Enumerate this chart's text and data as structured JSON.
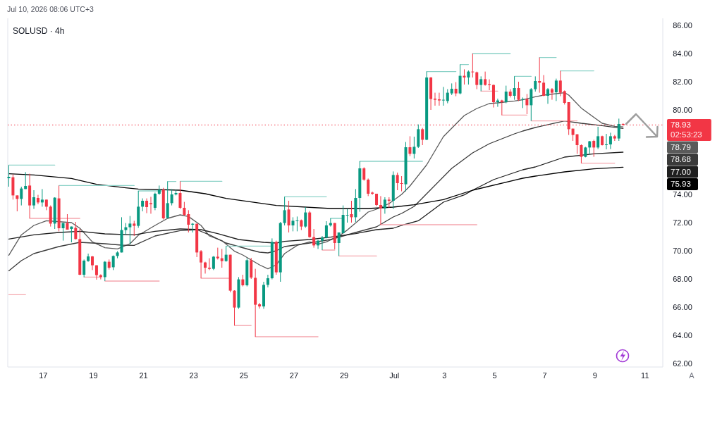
{
  "chart_data": {
    "type": "candlestick",
    "title": "SOLUSD · 4h",
    "annotations": [
      "Jul 10, 2026 08:06 UTC+3",
      "02:53:23",
      "78.79",
      "78.68",
      "77.00",
      "75.93",
      "A"
    ],
    "x": [
      "2026-06-15T15:00",
      "2026-06-15T19:00",
      "2026-06-15T23:00",
      "2026-06-16T03:00",
      "2026-06-16T07:00",
      "2026-06-16T11:00",
      "2026-06-16T15:00",
      "2026-06-16T19:00",
      "2026-06-16T23:00",
      "2026-06-17T03:00",
      "2026-06-17T07:00",
      "2026-06-17T11:00",
      "2026-06-17T15:00",
      "2026-06-17T19:00",
      "2026-06-17T23:00",
      "2026-06-18T03:00",
      "2026-06-18T07:00",
      "2026-06-18T11:00",
      "2026-06-18T15:00",
      "2026-06-18T19:00",
      "2026-06-18T23:00",
      "2026-06-19T03:00",
      "2026-06-19T07:00",
      "2026-06-19T11:00",
      "2026-06-19T15:00",
      "2026-06-19T19:00",
      "2026-06-19T23:00",
      "2026-06-20T03:00",
      "2026-06-20T07:00",
      "2026-06-20T11:00",
      "2026-06-20T15:00",
      "2026-06-20T19:00",
      "2026-06-20T23:00",
      "2026-06-21T03:00",
      "2026-06-21T07:00",
      "2026-06-21T11:00",
      "2026-06-21T15:00",
      "2026-06-21T19:00",
      "2026-06-21T23:00",
      "2026-06-22T03:00",
      "2026-06-22T07:00",
      "2026-06-22T11:00",
      "2026-06-22T15:00",
      "2026-06-22T19:00",
      "2026-06-22T23:00",
      "2026-06-23T03:00",
      "2026-06-23T07:00",
      "2026-06-23T11:00",
      "2026-06-23T15:00",
      "2026-06-23T19:00",
      "2026-06-23T23:00",
      "2026-06-24T03:00",
      "2026-06-24T07:00",
      "2026-06-24T11:00",
      "2026-06-24T15:00",
      "2026-06-24T19:00",
      "2026-06-24T23:00",
      "2026-06-25T03:00",
      "2026-06-25T07:00",
      "2026-06-25T11:00",
      "2026-06-25T15:00",
      "2026-06-25T19:00",
      "2026-06-25T23:00",
      "2026-06-26T03:00",
      "2026-06-26T07:00",
      "2026-06-26T11:00",
      "2026-06-26T15:00",
      "2026-06-26T19:00",
      "2026-06-26T23:00",
      "2026-06-27T03:00",
      "2026-06-27T07:00",
      "2026-06-27T11:00",
      "2026-06-27T15:00",
      "2026-06-27T19:00",
      "2026-06-27T23:00",
      "2026-06-28T03:00",
      "2026-06-28T07:00",
      "2026-06-28T11:00",
      "2026-06-28T15:00",
      "2026-06-28T19:00",
      "2026-06-28T23:00",
      "2026-06-29T03:00",
      "2026-06-29T07:00",
      "2026-06-29T11:00",
      "2026-06-29T15:00",
      "2026-06-29T19:00",
      "2026-06-29T23:00",
      "2026-06-30T03:00",
      "2026-06-30T07:00",
      "2026-06-30T11:00",
      "2026-06-30T15:00",
      "2026-06-30T19:00",
      "2026-06-30T23:00",
      "2026-07-01T03:00",
      "2026-07-01T07:00",
      "2026-07-01T11:00",
      "2026-07-01T15:00",
      "2026-07-01T19:00",
      "2026-07-01T23:00",
      "2026-07-02T03:00",
      "2026-07-02T07:00",
      "2026-07-02T11:00",
      "2026-07-02T15:00",
      "2026-07-02T19:00",
      "2026-07-02T23:00",
      "2026-07-03T03:00",
      "2026-07-03T07:00",
      "2026-07-03T11:00",
      "2026-07-03T15:00",
      "2026-07-03T19:00",
      "2026-07-03T23:00",
      "2026-07-04T03:00",
      "2026-07-04T07:00",
      "2026-07-04T11:00",
      "2026-07-04T15:00",
      "2026-07-04T19:00",
      "2026-07-04T23:00",
      "2026-07-05T03:00",
      "2026-07-05T07:00",
      "2026-07-05T11:00",
      "2026-07-05T15:00",
      "2026-07-05T19:00",
      "2026-07-05T23:00",
      "2026-07-06T03:00",
      "2026-07-06T07:00",
      "2026-07-06T11:00",
      "2026-07-06T15:00",
      "2026-07-06T19:00",
      "2026-07-06T23:00",
      "2026-07-07T03:00",
      "2026-07-07T07:00",
      "2026-07-07T11:00",
      "2026-07-07T15:00",
      "2026-07-07T19:00",
      "2026-07-07T23:00",
      "2026-07-08T03:00",
      "2026-07-08T07:00",
      "2026-07-08T11:00",
      "2026-07-08T15:00",
      "2026-07-08T19:00",
      "2026-07-08T23:00",
      "2026-07-09T03:00",
      "2026-07-09T07:00",
      "2026-07-09T11:00",
      "2026-07-09T15:00",
      "2026-07-09T19:00",
      "2026-07-09T23:00",
      "2026-07-10T03:00"
    ],
    "ohlc": [
      [
        75.15,
        76.08,
        74.55,
        75.25
      ],
      [
        75.22,
        75.42,
        73.63,
        73.93
      ],
      [
        73.93,
        73.93,
        72.8,
        73.68
      ],
      [
        73.68,
        74.55,
        73.22,
        74.42
      ],
      [
        74.38,
        75.58,
        74.38,
        74.6
      ],
      [
        74.63,
        75.47,
        72.3,
        73.22
      ],
      [
        73.22,
        74.3,
        72.97,
        73.8
      ],
      [
        73.75,
        73.97,
        73.3,
        73.43
      ],
      [
        73.43,
        74.38,
        73.13,
        73.63
      ],
      [
        73.63,
        73.63,
        72.88,
        73.13
      ],
      [
        73.13,
        73.22,
        71.72,
        71.93
      ],
      [
        71.93,
        73.8,
        71.55,
        73.77
      ],
      [
        73.72,
        74.63,
        71.38,
        71.6
      ],
      [
        71.6,
        71.97,
        70.72,
        71.97
      ],
      [
        71.97,
        72.6,
        71.5,
        71.5
      ],
      [
        71.55,
        71.72,
        70.6,
        71.72
      ],
      [
        71.63,
        72.05,
        70.8,
        70.83
      ],
      [
        70.83,
        71.55,
        68.27,
        68.3
      ],
      [
        68.3,
        69.38,
        68.13,
        69.3
      ],
      [
        69.27,
        69.8,
        69.22,
        69.6
      ],
      [
        69.6,
        69.63,
        68.63,
        68.97
      ],
      [
        68.97,
        68.97,
        67.95,
        68.27
      ],
      [
        68.27,
        68.33,
        67.97,
        68.13
      ],
      [
        68.13,
        69.27,
        67.85,
        69.22
      ],
      [
        69.22,
        69.38,
        68.67,
        68.8
      ],
      [
        68.83,
        69.67,
        68.63,
        69.63
      ],
      [
        69.63,
        69.97,
        69.47,
        69.88
      ],
      [
        69.88,
        72.38,
        69.88,
        71.47
      ],
      [
        71.47,
        71.97,
        71.13,
        71.67
      ],
      [
        71.67,
        72.47,
        70.47,
        71.93
      ],
      [
        71.93,
        72.13,
        71.05,
        71.77
      ],
      [
        71.77,
        74.25,
        71.63,
        73.13
      ],
      [
        73.13,
        73.72,
        72.8,
        73.55
      ],
      [
        73.55,
        73.72,
        72.67,
        73.1
      ],
      [
        73.38,
        73.83,
        72.63,
        73.3
      ],
      [
        73.05,
        74.13,
        72.88,
        74.05
      ],
      [
        74.05,
        74.63,
        73.97,
        74.33
      ],
      [
        74.33,
        74.47,
        72.22,
        72.3
      ],
      [
        72.33,
        74.92,
        72.3,
        73.38
      ],
      [
        73.38,
        74.38,
        73.22,
        74.0
      ],
      [
        74.0,
        74.33,
        73.93,
        74.1
      ],
      [
        74.1,
        74.93,
        72.97,
        73.05
      ],
      [
        73.05,
        73.47,
        72.47,
        72.55
      ],
      [
        72.6,
        72.88,
        71.3,
        71.85
      ],
      [
        71.85,
        71.97,
        71.3,
        71.92
      ],
      [
        71.92,
        71.92,
        69.55,
        69.88
      ],
      [
        69.97,
        70.05,
        68.05,
        69.17
      ],
      [
        69.17,
        69.22,
        68.38,
        68.8
      ],
      [
        68.8,
        69.47,
        68.63,
        68.72
      ],
      [
        68.72,
        69.63,
        68.63,
        69.58
      ],
      [
        69.58,
        70.22,
        69.38,
        69.47
      ],
      [
        69.47,
        70.13,
        68.8,
        69.27
      ],
      [
        69.27,
        70.33,
        69.22,
        69.72
      ],
      [
        69.72,
        69.72,
        67.05,
        67.17
      ],
      [
        67.17,
        67.2,
        64.7,
        65.97
      ],
      [
        65.97,
        68.13,
        65.88,
        67.97
      ],
      [
        67.97,
        68.3,
        67.47,
        67.55
      ],
      [
        67.55,
        69.47,
        67.47,
        69.33
      ],
      [
        69.33,
        69.5,
        68.0,
        68.1
      ],
      [
        68.08,
        68.72,
        63.9,
        66.17
      ],
      [
        66.2,
        66.3,
        65.9,
        66.05
      ],
      [
        66.05,
        67.8,
        65.88,
        67.58
      ],
      [
        67.58,
        68.3,
        67.4,
        68.05
      ],
      [
        68.05,
        70.88,
        67.97,
        70.63
      ],
      [
        70.63,
        70.72,
        68.3,
        68.47
      ],
      [
        68.47,
        72.05,
        67.8,
        71.97
      ],
      [
        71.97,
        73.83,
        71.8,
        72.88
      ],
      [
        72.93,
        73.55,
        71.3,
        71.8
      ],
      [
        71.8,
        72.38,
        71.38,
        72.13
      ],
      [
        72.1,
        72.43,
        71.38,
        72.15
      ],
      [
        72.17,
        72.22,
        71.47,
        71.72
      ],
      [
        71.72,
        73.1,
        71.63,
        72.72
      ],
      [
        72.72,
        72.83,
        70.93,
        70.97
      ],
      [
        70.97,
        71.55,
        70.22,
        70.38
      ],
      [
        70.38,
        70.77,
        70.13,
        70.72
      ],
      [
        70.72,
        71.05,
        70.05,
        70.93
      ],
      [
        70.93,
        72.1,
        70.88,
        71.8
      ],
      [
        71.8,
        72.3,
        71.72,
        71.97
      ],
      [
        71.97,
        71.97,
        70.1,
        70.55
      ],
      [
        70.55,
        71.3,
        69.63,
        71.3
      ],
      [
        71.25,
        73.22,
        71.22,
        72.55
      ],
      [
        72.5,
        72.97,
        72.0,
        72.55
      ],
      [
        72.6,
        73.55,
        72.0,
        72.38
      ],
      [
        72.38,
        74.38,
        72.05,
        73.75
      ],
      [
        73.75,
        76.35,
        72.77,
        75.85
      ],
      [
        75.85,
        75.93,
        74.97,
        75.05
      ],
      [
        75.05,
        75.13,
        73.88,
        74.05
      ],
      [
        74.13,
        74.2,
        73.97,
        74.05
      ],
      [
        74.05,
        74.05,
        73.17,
        73.25
      ],
      [
        73.25,
        73.88,
        71.85,
        73.0
      ],
      [
        73.0,
        73.8,
        72.63,
        73.63
      ],
      [
        73.63,
        73.8,
        73.05,
        73.55
      ],
      [
        73.55,
        75.63,
        72.97,
        75.38
      ],
      [
        75.38,
        75.55,
        74.3,
        74.8
      ],
      [
        74.8,
        75.3,
        74.22,
        74.75
      ],
      [
        74.72,
        77.72,
        74.22,
        77.35
      ],
      [
        77.35,
        78.13,
        76.72,
        76.88
      ],
      [
        76.88,
        78.1,
        76.55,
        77.38
      ],
      [
        77.38,
        78.97,
        77.3,
        78.63
      ],
      [
        78.63,
        78.72,
        77.5,
        77.88
      ],
      [
        77.88,
        82.72,
        77.85,
        82.3
      ],
      [
        82.3,
        82.33,
        80.0,
        80.77
      ],
      [
        80.8,
        81.22,
        80.3,
        80.72
      ],
      [
        80.75,
        81.22,
        80.3,
        80.67
      ],
      [
        80.67,
        81.63,
        80.3,
        80.72
      ],
      [
        80.63,
        81.47,
        80.47,
        81.22
      ],
      [
        81.17,
        81.88,
        81.05,
        81.5
      ],
      [
        81.5,
        81.97,
        80.97,
        81.17
      ],
      [
        81.17,
        83.22,
        81.1,
        82.42
      ],
      [
        82.42,
        82.88,
        81.8,
        82.3
      ],
      [
        82.3,
        82.8,
        81.8,
        82.72
      ],
      [
        82.72,
        84.0,
        82.3,
        82.67
      ],
      [
        82.67,
        82.72,
        81.47,
        81.77
      ],
      [
        81.77,
        82.38,
        81.33,
        82.18
      ],
      [
        82.18,
        82.72,
        81.72,
        81.77
      ],
      [
        81.83,
        82.17,
        81.4,
        81.77
      ],
      [
        81.77,
        81.8,
        80.17,
        80.55
      ],
      [
        80.55,
        80.8,
        80.22,
        80.67
      ],
      [
        80.67,
        80.72,
        79.63,
        80.55
      ],
      [
        80.55,
        81.72,
        80.47,
        81.3
      ],
      [
        81.3,
        81.47,
        80.88,
        81.0
      ],
      [
        81.0,
        82.38,
        80.72,
        81.55
      ],
      [
        81.55,
        82.0,
        80.63,
        80.72
      ],
      [
        80.72,
        80.88,
        80.13,
        80.77
      ],
      [
        80.77,
        81.13,
        79.7,
        80.33
      ],
      [
        80.33,
        81.55,
        79.22,
        81.47
      ],
      [
        81.47,
        82.38,
        81.3,
        82.05
      ],
      [
        82.05,
        83.72,
        81.22,
        81.93
      ],
      [
        81.93,
        82.47,
        80.97,
        81.0
      ],
      [
        81.0,
        81.55,
        80.43,
        81.47
      ],
      [
        81.47,
        81.55,
        80.72,
        81.22
      ],
      [
        81.25,
        82.22,
        80.63,
        82.08
      ],
      [
        82.08,
        82.77,
        80.97,
        81.22
      ],
      [
        81.33,
        81.38,
        80.38,
        80.5
      ],
      [
        80.55,
        80.55,
        78.22,
        78.63
      ],
      [
        78.67,
        78.67,
        77.8,
        78.22
      ],
      [
        78.27,
        78.27,
        76.88,
        77.5
      ],
      [
        77.5,
        77.55,
        76.22,
        76.67
      ],
      [
        76.67,
        77.38,
        76.63,
        77.33
      ],
      [
        77.33,
        77.8,
        76.88,
        77.77
      ],
      [
        77.8,
        77.88,
        76.67,
        77.33
      ],
      [
        77.33,
        78.8,
        77.22,
        78.13
      ],
      [
        78.13,
        78.17,
        77.47,
        77.5
      ],
      [
        77.5,
        78.3,
        77.2,
        77.55
      ],
      [
        77.55,
        78.38,
        77.22,
        78.13
      ],
      [
        78.13,
        78.22,
        77.8,
        77.97
      ],
      [
        77.97,
        79.38,
        77.8,
        79.0
      ],
      [
        79.0,
        79.05,
        78.9,
        78.93
      ]
    ],
    "colors": [
      "#089981",
      "#f23645",
      "#f23645",
      "#089981",
      "#089981",
      "#f23645",
      "#089981",
      "#f23645",
      "#089981",
      "#f23645",
      "#f23645",
      "#089981",
      "#f23645",
      "#089981",
      "#f23645",
      "#089981",
      "#f23645",
      "#f23645",
      "#089981",
      "#089981",
      "#f23645",
      "#f23645",
      "#f23645",
      "#089981",
      "#f23645",
      "#089981",
      "#089981",
      "#089981",
      "#089981",
      "#089981",
      "#f23645",
      "#089981",
      "#089981",
      "#f23645",
      "#f23645",
      "#089981",
      "#089981",
      "#f23645",
      "#089981",
      "#089981",
      "#089981",
      "#f23645",
      "#f23645",
      "#f23645",
      "#089981",
      "#f23645",
      "#f23645",
      "#f23645",
      "#f23645",
      "#089981",
      "#f23645",
      "#f23645",
      "#089981",
      "#f23645",
      "#f23645",
      "#089981",
      "#f23645",
      "#089981",
      "#f23645",
      "#f23645",
      "#f23645",
      "#089981",
      "#089981",
      "#089981",
      "#f23645",
      "#089981",
      "#089981",
      "#f23645",
      "#089981",
      "#089981",
      "#f23645",
      "#089981",
      "#f23645",
      "#f23645",
      "#089981",
      "#089981",
      "#089981",
      "#089981",
      "#f23645",
      "#089981",
      "#089981",
      "#089981",
      "#f23645",
      "#089981",
      "#089981",
      "#f23645",
      "#f23645",
      "#f23645",
      "#f23645",
      "#f23645",
      "#089981",
      "#f23645",
      "#089981",
      "#f23645",
      "#f23645",
      "#089981",
      "#f23645",
      "#089981",
      "#089981",
      "#f23645",
      "#089981",
      "#f23645",
      "#f23645",
      "#f23645",
      "#089981",
      "#089981",
      "#089981",
      "#f23645",
      "#089981",
      "#f23645",
      "#089981",
      "#f23645",
      "#f23645",
      "#089981",
      "#f23645",
      "#f23645",
      "#f23645",
      "#089981",
      "#f23645",
      "#089981",
      "#f23645",
      "#089981",
      "#f23645",
      "#089981",
      "#f23645",
      "#089981",
      "#089981",
      "#f23645",
      "#f23645",
      "#089981",
      "#f23645",
      "#089981",
      "#f23645",
      "#f23645",
      "#f23645",
      "#f23645",
      "#f23645",
      "#f23645",
      "#089981",
      "#089981",
      "#f23645",
      "#089981",
      "#f23645",
      "#089981",
      "#089981",
      "#f23645",
      "#089981",
      "#f23645"
    ],
    "series": [
      {
        "type": "line",
        "color": "#5a5a5a",
        "x": [
          "2026-06-15T15:00",
          "2026-06-16T03:00",
          "2026-06-16T15:00",
          "2026-06-17T03:00",
          "2026-06-18T03:00",
          "2026-06-18T11:00",
          "2026-06-18T23:00",
          "2026-06-19T11:00",
          "2026-06-19T23:00",
          "2026-06-20T11:00",
          "2026-06-20T19:00",
          "2026-06-21T11:00",
          "2026-06-21T23:00",
          "2026-06-22T11:00",
          "2026-06-22T19:00",
          "2026-06-23T07:00",
          "2026-06-23T15:00",
          "2026-06-24T03:00",
          "2026-06-24T15:00",
          "2026-06-24T23:00",
          "2026-06-25T15:00",
          "2026-06-25T23:00",
          "2026-06-26T07:00",
          "2026-06-26T15:00",
          "2026-06-27T03:00",
          "2026-06-27T15:00",
          "2026-06-27T23:00",
          "2026-06-28T07:00",
          "2026-06-28T19:00",
          "2026-06-29T03:00",
          "2026-06-29T11:00",
          "2026-06-29T23:00",
          "2026-06-30T07:00",
          "2026-06-30T19:00",
          "2026-07-01T07:00",
          "2026-07-01T15:00",
          "2026-07-02T07:00",
          "2026-07-02T23:00",
          "2026-07-03T11:00",
          "2026-07-03T19:00",
          "2026-07-04T07:00",
          "2026-07-04T19:00",
          "2026-07-05T03:00",
          "2026-07-05T19:00",
          "2026-07-06T03:00",
          "2026-07-06T15:00",
          "2026-07-06T23:00",
          "2026-07-07T19:00",
          "2026-07-07T23:00",
          "2026-07-08T11:00",
          "2026-07-08T23:00",
          "2026-07-09T07:00",
          "2026-07-09T19:00",
          "2026-07-10T03:00"
        ],
        "values": [
          69.68,
          71.13,
          71.8,
          72.13,
          72.0,
          71.6,
          70.63,
          70.22,
          70.13,
          70.5,
          71.1,
          71.8,
          72.3,
          72.55,
          72.43,
          71.8,
          71.05,
          70.72,
          69.97,
          69.7,
          69.0,
          68.72,
          69.0,
          69.8,
          70.38,
          70.63,
          70.47,
          70.63,
          71.05,
          71.47,
          71.97,
          72.75,
          72.95,
          73.35,
          74.0,
          74.6,
          76.1,
          78.1,
          79.0,
          79.6,
          80.1,
          80.45,
          80.5,
          80.63,
          80.72,
          80.93,
          81.05,
          81.22,
          81.05,
          80.13,
          79.47,
          79.05,
          78.83,
          78.79
        ]
      },
      {
        "type": "line",
        "color": "#3a3a3a",
        "x": [
          "2026-06-15T15:00",
          "2026-06-16T03:00",
          "2026-06-16T15:00",
          "2026-06-17T15:00",
          "2026-06-18T11:00",
          "2026-06-19T11:00",
          "2026-06-20T03:00",
          "2026-06-20T15:00",
          "2026-06-21T11:00",
          "2026-06-22T11:00",
          "2026-06-23T03:00",
          "2026-06-23T15:00",
          "2026-06-24T07:00",
          "2026-06-25T07:00",
          "2026-06-25T15:00",
          "2026-06-25T23:00",
          "2026-06-26T07:00",
          "2026-06-26T15:00",
          "2026-06-27T15:00",
          "2026-06-28T11:00",
          "2026-06-29T11:00",
          "2026-06-30T07:00",
          "2026-06-30T23:00",
          "2026-07-01T07:00",
          "2026-07-01T19:00",
          "2026-07-02T07:00",
          "2026-07-03T07:00",
          "2026-07-04T03:00",
          "2026-07-04T19:00",
          "2026-07-05T19:00",
          "2026-07-06T03:00",
          "2026-07-06T15:00",
          "2026-07-07T19:00",
          "2026-07-08T11:00",
          "2026-07-09T07:00",
          "2026-07-10T03:00"
        ],
        "values": [
          68.58,
          69.3,
          69.8,
          70.3,
          70.6,
          70.5,
          70.4,
          70.38,
          71.05,
          71.43,
          71.5,
          71.13,
          70.55,
          70.05,
          69.9,
          69.85,
          70.0,
          70.3,
          70.55,
          70.8,
          71.3,
          71.7,
          72.4,
          72.65,
          73.15,
          74.05,
          75.85,
          76.95,
          77.6,
          78.3,
          78.5,
          78.75,
          79.22,
          79.05,
          78.88,
          78.68
        ]
      },
      {
        "type": "line",
        "color": "#1f1f1f",
        "x": [
          "2026-06-15T15:00",
          "2026-06-16T15:00",
          "2026-06-17T15:00",
          "2026-06-18T11:00",
          "2026-06-19T11:00",
          "2026-06-20T15:00",
          "2026-06-21T11:00",
          "2026-06-22T11:00",
          "2026-06-23T07:00",
          "2026-06-23T23:00",
          "2026-06-24T19:00",
          "2026-06-25T19:00",
          "2026-06-26T07:00",
          "2026-06-26T15:00",
          "2026-06-27T15:00",
          "2026-06-28T11:00",
          "2026-06-29T11:00",
          "2026-06-30T07:00",
          "2026-06-30T23:00",
          "2026-07-01T07:00",
          "2026-07-01T23:00",
          "2026-07-02T23:00",
          "2026-07-03T19:00",
          "2026-07-04T03:00",
          "2026-07-04T23:00",
          "2026-07-05T19:00",
          "2026-07-06T03:00",
          "2026-07-06T15:00",
          "2026-07-07T19:00",
          "2026-07-08T23:00",
          "2026-07-10T03:00"
        ],
        "values": [
          70.83,
          71.13,
          71.3,
          71.38,
          71.2,
          71.13,
          71.38,
          71.55,
          71.5,
          71.22,
          70.8,
          70.6,
          70.55,
          70.67,
          70.8,
          70.97,
          71.22,
          71.5,
          71.6,
          71.8,
          72.13,
          73.45,
          73.97,
          74.3,
          75.05,
          75.55,
          75.75,
          75.95,
          76.65,
          76.88,
          77.0
        ]
      },
      {
        "type": "line",
        "color": "#000000",
        "x": [
          "2026-06-15T15:00",
          "2026-06-16T15:00",
          "2026-06-18T03:00",
          "2026-06-19T03:00",
          "2026-06-20T07:00",
          "2026-06-20T19:00",
          "2026-06-22T11:00",
          "2026-06-23T11:00",
          "2026-06-24T07:00",
          "2026-06-25T07:00",
          "2026-06-26T07:00",
          "2026-06-28T11:00",
          "2026-06-29T23:00",
          "2026-06-30T23:00",
          "2026-07-01T19:00",
          "2026-07-02T23:00",
          "2026-07-04T03:00",
          "2026-07-06T03:00",
          "2026-07-06T15:00",
          "2026-07-07T19:00",
          "2026-07-08T23:00",
          "2026-07-10T03:00"
        ],
        "values": [
          75.47,
          75.38,
          75.13,
          74.72,
          74.47,
          74.38,
          74.3,
          74.05,
          73.72,
          73.47,
          73.22,
          73.0,
          73.0,
          73.1,
          73.27,
          73.63,
          74.3,
          75.15,
          75.3,
          75.6,
          75.82,
          75.93
        ]
      },
      {
        "type": "line",
        "color": "#8cd2c8",
        "x": [
          "2026-06-15T15:00",
          "2026-06-17T11:00"
        ],
        "values": [
          76.08,
          76.08
        ]
      },
      {
        "type": "line",
        "color": "#8cd2c8",
        "x": [
          "2026-06-17T15:00",
          "2026-06-20T15:00"
        ],
        "values": [
          74.63,
          74.63
        ]
      },
      {
        "type": "line",
        "color": "#8cd2c8",
        "x": [
          "2026-06-20T19:00",
          "2026-06-21T19:00"
        ],
        "values": [
          74.25,
          74.25
        ]
      },
      {
        "type": "line",
        "color": "#8cd2c8",
        "x": [
          "2026-06-21T23:00",
          "2026-06-22T07:00"
        ],
        "values": [
          74.92,
          74.92
        ]
      },
      {
        "type": "line",
        "color": "#8cd2c8",
        "x": [
          "2026-06-22T11:00",
          "2026-06-24T03:00"
        ],
        "values": [
          74.93,
          74.93
        ]
      },
      {
        "type": "line",
        "color": "#8cd2c8",
        "x": [
          "2026-06-24T07:00",
          "2026-06-26T03:00"
        ],
        "values": [
          70.33,
          70.33
        ]
      },
      {
        "type": "line",
        "color": "#8cd2c8",
        "x": [
          "2026-06-26T15:00",
          "2026-06-28T07:00"
        ],
        "values": [
          73.83,
          73.83
        ]
      },
      {
        "type": "line",
        "color": "#8cd2c8",
        "x": [
          "2026-06-28T11:00",
          "2026-06-28T23:00"
        ],
        "values": [
          72.3,
          72.3
        ]
      },
      {
        "type": "line",
        "color": "#8cd2c8",
        "x": [
          "2026-06-29T15:00",
          "2026-07-02T03:00"
        ],
        "values": [
          76.35,
          76.35
        ]
      },
      {
        "type": "line",
        "color": "#8cd2c8",
        "x": [
          "2026-07-02T07:00",
          "2026-07-03T11:00"
        ],
        "values": [
          82.72,
          82.72
        ]
      },
      {
        "type": "line",
        "color": "#8cd2c8",
        "x": [
          "2026-07-03T15:00",
          "2026-07-03T23:00"
        ],
        "values": [
          83.22,
          83.22
        ]
      },
      {
        "type": "line",
        "color": "#8cd2c8",
        "x": [
          "2026-07-04T03:00",
          "2026-07-05T15:00"
        ],
        "values": [
          84.0,
          84.0
        ]
      },
      {
        "type": "line",
        "color": "#8cd2c8",
        "x": [
          "2026-07-05T19:00",
          "2026-07-06T11:00"
        ],
        "values": [
          82.38,
          82.38
        ]
      },
      {
        "type": "line",
        "color": "#8cd2c8",
        "x": [
          "2026-07-06T19:00",
          "2026-07-07T11:00"
        ],
        "values": [
          83.72,
          83.72
        ]
      },
      {
        "type": "line",
        "color": "#8cd2c8",
        "x": [
          "2026-07-07T15:00",
          "2026-07-08T23:00"
        ],
        "values": [
          82.77,
          82.77
        ]
      },
      {
        "type": "line",
        "color": "#f5a7ae",
        "x": [
          "2026-06-15T15:00",
          "2026-06-16T07:00"
        ],
        "values": [
          66.88,
          66.88
        ]
      },
      {
        "type": "line",
        "color": "#f5a7ae",
        "x": [
          "2026-06-16T11:00",
          "2026-06-18T11:00"
        ],
        "values": [
          72.3,
          72.3
        ]
      },
      {
        "type": "line",
        "color": "#f5a7ae",
        "x": [
          "2026-06-18T15:00",
          "2026-06-19T07:00"
        ],
        "values": [
          68.13,
          68.13
        ]
      },
      {
        "type": "line",
        "color": "#f5a7ae",
        "x": [
          "2026-06-19T11:00",
          "2026-06-21T15:00"
        ],
        "values": [
          67.85,
          67.85
        ]
      },
      {
        "type": "line",
        "color": "#f5a7ae",
        "x": [
          "2026-06-23T07:00",
          "2026-06-24T11:00"
        ],
        "values": [
          68.05,
          68.05
        ]
      },
      {
        "type": "line",
        "color": "#f5a7ae",
        "x": [
          "2026-06-24T15:00",
          "2026-06-25T07:00"
        ],
        "values": [
          64.7,
          64.7
        ]
      },
      {
        "type": "line",
        "color": "#f5a7ae",
        "x": [
          "2026-06-25T11:00",
          "2026-06-27T23:00"
        ],
        "values": [
          63.9,
          63.9
        ]
      },
      {
        "type": "line",
        "color": "#f5a7ae",
        "x": [
          "2026-06-28T03:00",
          "2026-06-28T15:00"
        ],
        "values": [
          70.05,
          70.05
        ]
      },
      {
        "type": "line",
        "color": "#f5a7ae",
        "x": [
          "2026-06-28T19:00",
          "2026-06-30T07:00"
        ],
        "values": [
          69.63,
          69.63
        ]
      },
      {
        "type": "line",
        "color": "#f5a7ae",
        "x": [
          "2026-06-30T11:00",
          "2026-07-04T07:00"
        ],
        "values": [
          71.85,
          71.85
        ]
      },
      {
        "type": "line",
        "color": "#f5a7ae",
        "x": [
          "2026-07-04T11:00",
          "2026-07-05T03:00"
        ],
        "values": [
          81.33,
          81.33
        ]
      },
      {
        "type": "line",
        "color": "#f5a7ae",
        "x": [
          "2026-07-05T07:00",
          "2026-07-06T07:00"
        ],
        "values": [
          79.63,
          79.63
        ]
      },
      {
        "type": "line",
        "color": "#f5a7ae",
        "x": [
          "2026-07-06T11:00",
          "2026-07-08T07:00"
        ],
        "values": [
          79.22,
          79.22
        ]
      },
      {
        "type": "line",
        "color": "#f5a7ae",
        "x": [
          "2026-07-08T11:00",
          "2026-07-09T19:00"
        ],
        "values": [
          76.22,
          76.22
        ]
      }
    ],
    "xlim": [
      "2026-06-15T14:00",
      "2026-07-11T17:00"
    ],
    "xticks": [
      {
        "value": "2026-06-17",
        "label": "17"
      },
      {
        "value": "2026-06-19",
        "label": "19"
      },
      {
        "value": "2026-06-21",
        "label": "21"
      },
      {
        "value": "2026-06-23",
        "label": "23"
      },
      {
        "value": "2026-06-25",
        "label": "25"
      },
      {
        "value": "2026-06-27",
        "label": "27"
      },
      {
        "value": "2026-06-29",
        "label": "29"
      },
      {
        "value": "2026-07-01",
        "label": "Jul"
      },
      {
        "value": "2026-07-03",
        "label": "3"
      },
      {
        "value": "2026-07-05",
        "label": "5"
      },
      {
        "value": "2026-07-07",
        "label": "7"
      },
      {
        "value": "2026-07-09",
        "label": "9"
      },
      {
        "value": "2026-07-11",
        "label": "11"
      }
    ],
    "ylim": [
      61.75,
      86.5
    ],
    "yticks": [
      {
        "value": 62,
        "label": "62.00"
      },
      {
        "value": 64,
        "label": "64.00"
      },
      {
        "value": 66,
        "label": "66.00"
      },
      {
        "value": 68,
        "label": "68.00"
      },
      {
        "value": 70,
        "label": "70.00"
      },
      {
        "value": 72,
        "label": "72.00"
      },
      {
        "value": 74,
        "label": "74.00"
      },
      {
        "value": 80,
        "label": "80.00"
      },
      {
        "value": 82,
        "label": "82.00"
      },
      {
        "value": 84,
        "label": "84.00"
      },
      {
        "value": 86,
        "label": "86.00"
      }
    ],
    "ref_lines": [
      {
        "axis": "y",
        "value": 78.93,
        "label": "78.93",
        "color": "#f23645",
        "line_style": "dotted"
      }
    ]
  }
}
